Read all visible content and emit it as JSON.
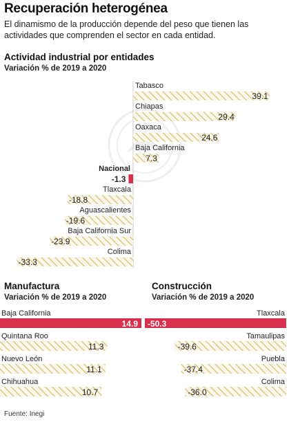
{
  "headline": "Recuperación heterogénea",
  "subhead": "El dinamismo de la producción depende del peso que tienen las actividades que comprenden el sector en cada entidad.",
  "source": "Fuente: Inegi",
  "colors": {
    "hatch_line": "#d7c27a",
    "hatch_bg": "#fbf7ea",
    "national": "#d9304b",
    "highlight": "#d9304b"
  },
  "chart_data": [
    {
      "type": "bar",
      "title": "Actividad industrial por entidades",
      "subtitle": "Variación % de 2019 a 2020",
      "orientation": "horizontal",
      "categories": [
        "Tabasco",
        "Chiapas",
        "Oaxaca",
        "Baja California",
        "Nacional",
        "Tlaxcala",
        "Aguascalientes",
        "Baja California Sur",
        "Colima"
      ],
      "values": [
        39.1,
        29.4,
        24.6,
        7.3,
        -1.3,
        -18.8,
        -19.6,
        -23.9,
        -33.3
      ],
      "labels": [
        "39.1",
        "29.4",
        "24.6",
        "7.3",
        "-1.3",
        "-18.8",
        "-19.6",
        "-23.9",
        "-33.3"
      ],
      "highlight": "Nacional"
    },
    {
      "type": "bar",
      "title": "Manufactura",
      "subtitle": "Variación % de 2019 a 2020",
      "orientation": "horizontal",
      "categories": [
        "Baja California",
        "Quintana Roo",
        "Nuevo León",
        "Chihuahua"
      ],
      "values": [
        14.9,
        11.3,
        11.1,
        10.7
      ],
      "labels": [
        "14.9",
        "11.3",
        "11.1",
        "10.7"
      ],
      "highlight": "Baja California"
    },
    {
      "type": "bar",
      "title": "Construcción",
      "subtitle": "Variación % de 2019 a 2020",
      "orientation": "horizontal",
      "categories": [
        "Tlaxcala",
        "Tamaulipas",
        "Puebla",
        "Colima"
      ],
      "values": [
        -50.3,
        -39.6,
        -37.4,
        -36.0
      ],
      "labels": [
        "-50.3",
        "-39.6",
        "-37.4",
        "-36.0"
      ],
      "highlight": "Tlaxcala"
    }
  ]
}
